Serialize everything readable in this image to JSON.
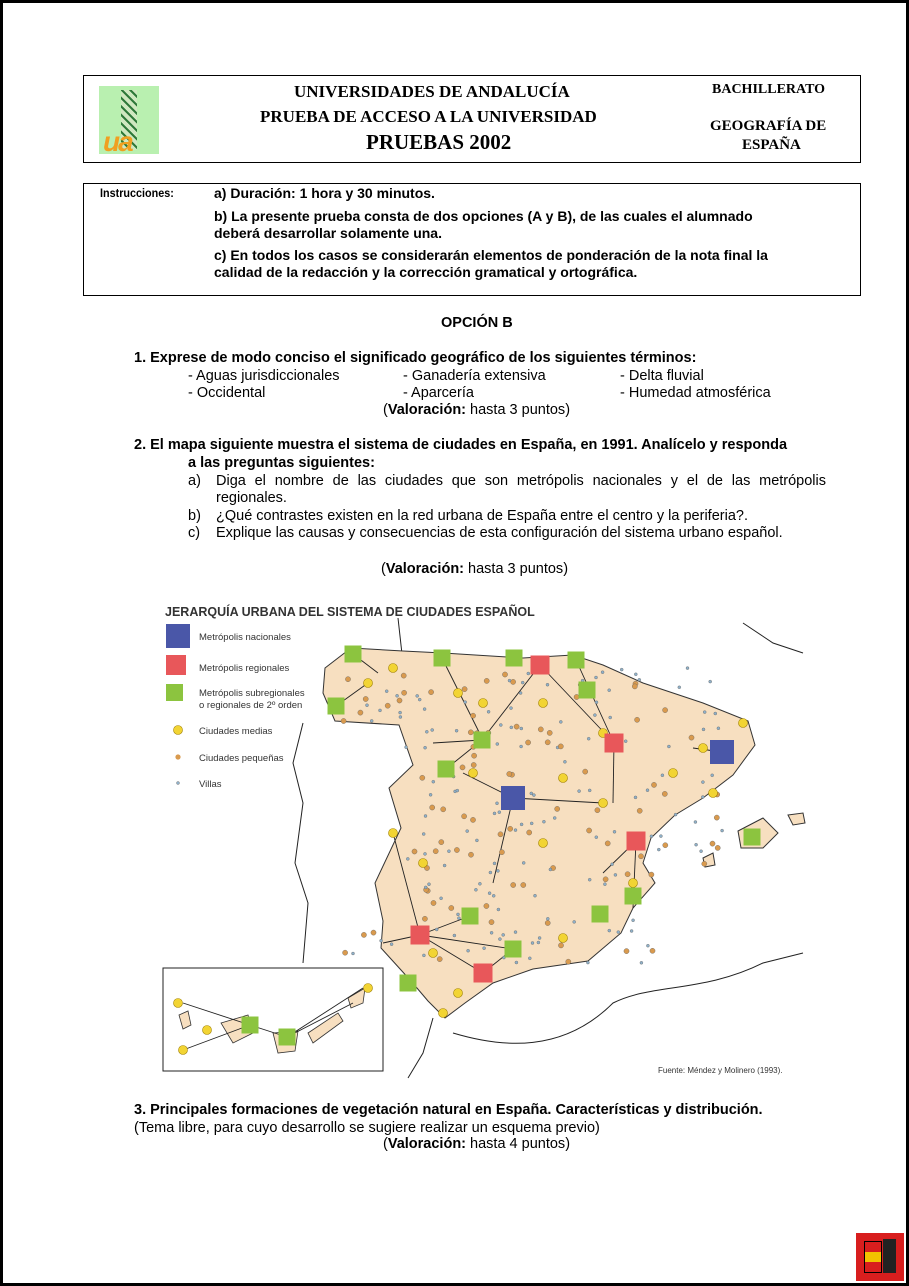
{
  "header": {
    "logo_text": "ua",
    "line1": "UNIVERSIDADES DE ANDALUCÍA",
    "line2": "PRUEBA DE ACCESO A LA UNIVERSIDAD",
    "line3": "PRUEBAS 2002",
    "level": "BACHILLERATO",
    "subject_line1": "GEOGRAFÍA DE",
    "subject_line2": "ESPAÑA"
  },
  "instructions": {
    "label": "Instrucciones:",
    "a": "a) Duración:  1 hora y 30  minutos.",
    "b1": "b) La presente prueba consta de dos opciones (A y B), de las cuales el alumnado",
    "b2": "deberá desarrollar solamente una.",
    "c1": "c)  En todos los casos se considerarán elementos de ponderación de la nota final la",
    "c2": "calidad de la redacción y la corrección gramatical y ortográfica."
  },
  "option_title": "OPCIÓN B",
  "q1": {
    "text": "1. Exprese de modo conciso el significado geográfico de los siguientes términos:",
    "terms": [
      "- Aguas jurisdiccionales",
      "- Ganadería extensiva",
      "- Delta fluvial",
      "- Occidental",
      "- Aparcería",
      "- Humedad atmosférica"
    ],
    "score_label": "Valoración:",
    "score_text": "hasta 3 puntos"
  },
  "q2": {
    "text1": "2. El mapa siguiente muestra el sistema de ciudades en España, en 1991. Analícelo y responda",
    "text2": "a las preguntas siguientes:",
    "items": [
      {
        "letter": "a)",
        "text": "Diga el nombre de las ciudades que son metrópolis nacionales y el de las metrópolis regionales."
      },
      {
        "letter": "b)",
        "text": "¿Qué contrastes existen en la red urbana de España entre el centro y la periferia?."
      },
      {
        "letter": "c)",
        "text": "Explique las causas y consecuencias de esta configuración del sistema urbano español."
      }
    ],
    "score_label": "Valoración:",
    "score_text": "hasta 3 puntos"
  },
  "map": {
    "title": "JERARQUÍA URBANA DEL SISTEMA DE CIUDADES ESPAÑOL",
    "legend": [
      "Metrópolis nacionales",
      "Metrópolis regionales",
      "Metrópolis subregionales",
      "o regionales de 2º orden",
      "Ciudades medias",
      "Ciudades pequeñas",
      "Villas"
    ],
    "source": "Fuente: Méndez y Molinero (1993).",
    "colors": {
      "national": "#4a57a8",
      "regional": "#e8575a",
      "subregional": "#8cc43f",
      "medium": "#f2d433",
      "small": "#d99a4e",
      "villa": "#8fb0c8",
      "land": "#f7dfc0"
    }
  },
  "q3": {
    "text": "3. Principales formaciones de vegetación natural en España. Características y distribución.",
    "note": "(Tema libre, para cuyo desarrollo se sugiere realizar un esquema previo)",
    "score_label": "Valoración:",
    "score_text": "hasta 4 puntos"
  }
}
